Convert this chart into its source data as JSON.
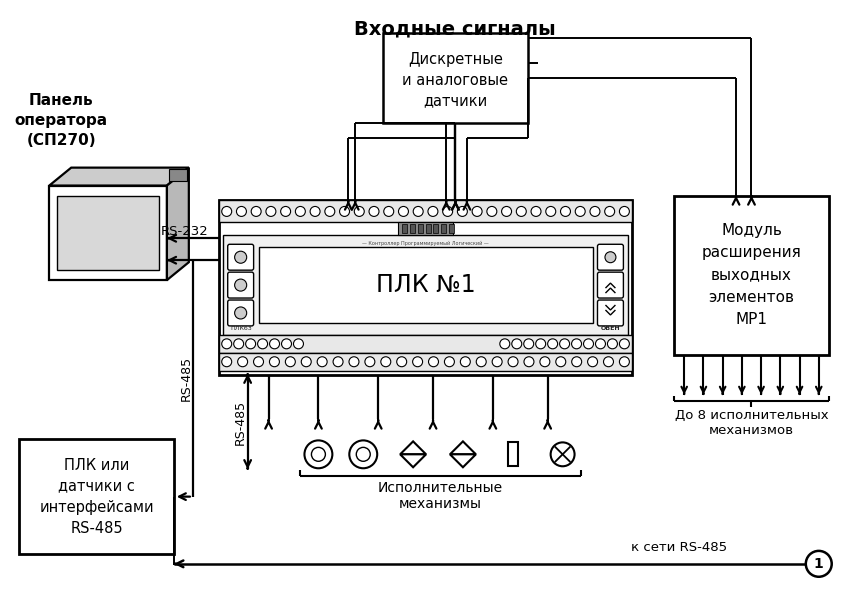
{
  "title_input": "Входные сигналы",
  "sensor_box_text": "Дискретные\nи аналоговые\nдатчики",
  "plc_label": "ПЛК №1",
  "module_label": "Модуль\nрасширения\nвыходных\nэлементов\nМР1",
  "panel_label": "Панель\nоператора\n(СП270)",
  "plc_or_sensors_label": "ПЛК или\nдатчики с\nинтерфейсами\nRS-485",
  "mechanisms_label": "Исполнительные\nмеханизмы",
  "up_to_8": "До 8 исполнительных\nмеханизмов",
  "rs_net": "к сети RS-485",
  "rs232_label": "RS-232",
  "rs485_left_label": "RS-485",
  "rs485_bottom_label": "RS-485",
  "plk63": "ПЛК63",
  "oven": "ОВЕН"
}
